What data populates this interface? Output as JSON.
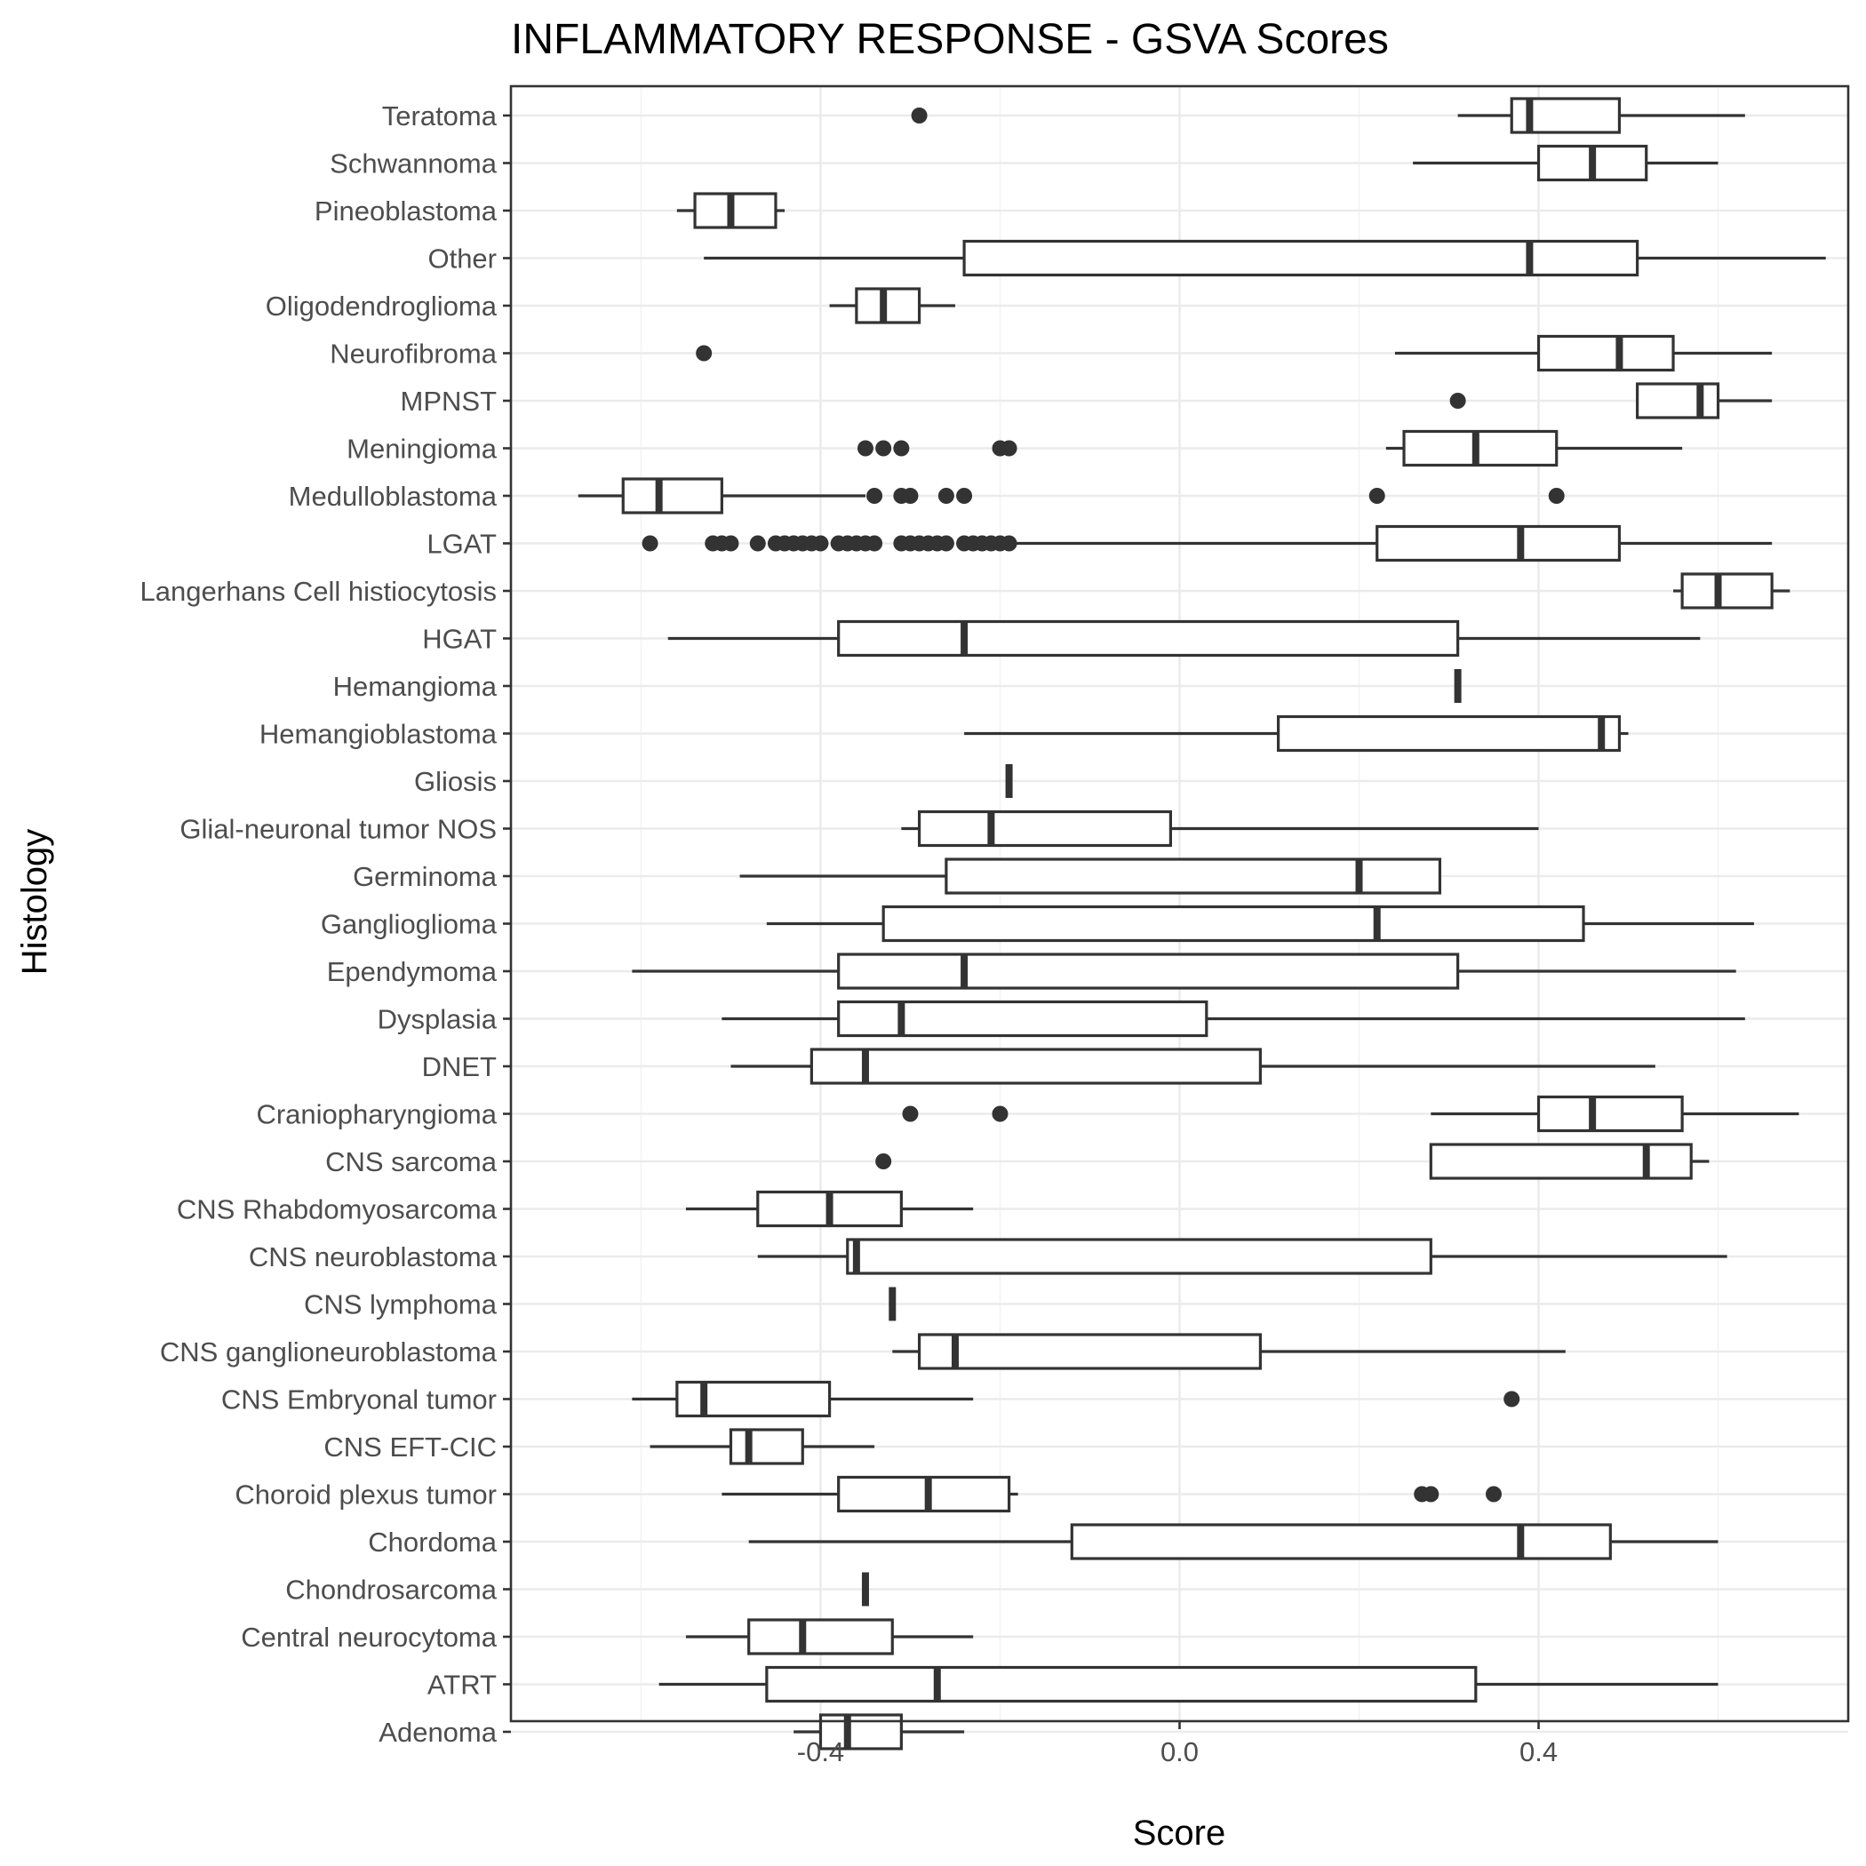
{
  "chart_data": {
    "type": "box",
    "title": "INFLAMMATORY RESPONSE - GSVA Scores",
    "xlabel": "Score",
    "ylabel": "Histology",
    "xlim": [
      -0.745,
      0.745
    ],
    "x_ticks": [
      -0.4,
      0.0,
      0.4
    ],
    "x_tick_labels": [
      "-0.4",
      "0.0",
      "0.4"
    ],
    "grid": true,
    "categories": [
      "Teratoma",
      "Schwannoma",
      "Pineoblastoma",
      "Other",
      "Oligodendroglioma",
      "Neurofibroma",
      "MPNST",
      "Meningioma",
      "Medulloblastoma",
      "LGAT",
      "Langerhans Cell histiocytosis",
      "HGAT",
      "Hemangioma",
      "Hemangioblastoma",
      "Gliosis",
      "Glial-neuronal tumor NOS",
      "Germinoma",
      "Ganglioglioma",
      "Ependymoma",
      "Dysplasia",
      "DNET",
      "Craniopharyngioma",
      "CNS sarcoma",
      "CNS Rhabdomyosarcoma",
      "CNS neuroblastoma",
      "CNS lymphoma",
      "CNS ganglioneuroblastoma",
      "CNS Embryonal tumor",
      "CNS EFT-CIC",
      "Choroid plexus tumor",
      "Chordoma",
      "Chondrosarcoma",
      "Central neurocytoma",
      "ATRT",
      "Adenoma"
    ],
    "boxes": [
      {
        "label": "Teratoma",
        "whisker_low": 0.31,
        "q1": 0.37,
        "median": 0.39,
        "q3": 0.49,
        "whisker_high": 0.63,
        "outliers": [
          -0.29
        ]
      },
      {
        "label": "Schwannoma",
        "whisker_low": 0.26,
        "q1": 0.4,
        "median": 0.46,
        "q3": 0.52,
        "whisker_high": 0.6,
        "outliers": []
      },
      {
        "label": "Pineoblastoma",
        "whisker_low": -0.56,
        "q1": -0.54,
        "median": -0.5,
        "q3": -0.45,
        "whisker_high": -0.44,
        "outliers": []
      },
      {
        "label": "Other",
        "whisker_low": -0.53,
        "q1": -0.24,
        "median": 0.39,
        "q3": 0.51,
        "whisker_high": 0.72,
        "outliers": []
      },
      {
        "label": "Oligodendroglioma",
        "whisker_low": -0.39,
        "q1": -0.36,
        "median": -0.33,
        "q3": -0.29,
        "whisker_high": -0.25,
        "outliers": []
      },
      {
        "label": "Neurofibroma",
        "whisker_low": 0.24,
        "q1": 0.4,
        "median": 0.49,
        "q3": 0.55,
        "whisker_high": 0.66,
        "outliers": [
          -0.53
        ]
      },
      {
        "label": "MPNST",
        "whisker_low": 0.51,
        "q1": 0.51,
        "median": 0.58,
        "q3": 0.6,
        "whisker_high": 0.66,
        "outliers": [
          0.31
        ]
      },
      {
        "label": "Meningioma",
        "whisker_low": 0.23,
        "q1": 0.25,
        "median": 0.33,
        "q3": 0.42,
        "whisker_high": 0.56,
        "outliers": [
          -0.35,
          -0.33,
          -0.31,
          -0.2,
          -0.19
        ]
      },
      {
        "label": "Medulloblastoma",
        "whisker_low": -0.67,
        "q1": -0.62,
        "median": -0.58,
        "q3": -0.51,
        "whisker_high": -0.35,
        "outliers": [
          -0.34,
          -0.31,
          -0.3,
          -0.26,
          -0.24,
          0.22,
          0.42
        ]
      },
      {
        "label": "LGAT",
        "whisker_low": -0.19,
        "q1": 0.22,
        "median": 0.38,
        "q3": 0.49,
        "whisker_high": 0.66,
        "outliers": [
          -0.59,
          -0.52,
          -0.51,
          -0.5,
          -0.47,
          -0.45,
          -0.44,
          -0.43,
          -0.42,
          -0.41,
          -0.4,
          -0.38,
          -0.37,
          -0.36,
          -0.35,
          -0.34,
          -0.31,
          -0.3,
          -0.29,
          -0.28,
          -0.27,
          -0.26,
          -0.24,
          -0.23,
          -0.22,
          -0.21,
          -0.2,
          -0.19
        ]
      },
      {
        "label": "Langerhans Cell histiocytosis",
        "whisker_low": 0.55,
        "q1": 0.56,
        "median": 0.6,
        "q3": 0.66,
        "whisker_high": 0.68,
        "outliers": []
      },
      {
        "label": "HGAT",
        "whisker_low": -0.57,
        "q1": -0.38,
        "median": -0.24,
        "q3": 0.31,
        "whisker_high": 0.58,
        "outliers": []
      },
      {
        "label": "Hemangioma",
        "whisker_low": 0.31,
        "q1": 0.31,
        "median": 0.31,
        "q3": 0.31,
        "whisker_high": 0.31,
        "outliers": []
      },
      {
        "label": "Hemangioblastoma",
        "whisker_low": -0.24,
        "q1": 0.11,
        "median": 0.47,
        "q3": 0.49,
        "whisker_high": 0.5,
        "outliers": []
      },
      {
        "label": "Gliosis",
        "whisker_low": -0.19,
        "q1": -0.19,
        "median": -0.19,
        "q3": -0.19,
        "whisker_high": -0.19,
        "outliers": []
      },
      {
        "label": "Glial-neuronal tumor NOS",
        "whisker_low": -0.31,
        "q1": -0.29,
        "median": -0.21,
        "q3": -0.01,
        "whisker_high": 0.4,
        "outliers": []
      },
      {
        "label": "Germinoma",
        "whisker_low": -0.49,
        "q1": -0.26,
        "median": 0.2,
        "q3": 0.29,
        "whisker_high": 0.29,
        "outliers": []
      },
      {
        "label": "Ganglioglioma",
        "whisker_low": -0.46,
        "q1": -0.33,
        "median": 0.22,
        "q3": 0.45,
        "whisker_high": 0.64,
        "outliers": []
      },
      {
        "label": "Ependymoma",
        "whisker_low": -0.61,
        "q1": -0.38,
        "median": -0.24,
        "q3": 0.31,
        "whisker_high": 0.62,
        "outliers": []
      },
      {
        "label": "Dysplasia",
        "whisker_low": -0.51,
        "q1": -0.38,
        "median": -0.31,
        "q3": 0.03,
        "whisker_high": 0.63,
        "outliers": []
      },
      {
        "label": "DNET",
        "whisker_low": -0.5,
        "q1": -0.41,
        "median": -0.35,
        "q3": 0.09,
        "whisker_high": 0.53,
        "outliers": []
      },
      {
        "label": "Craniopharyngioma",
        "whisker_low": 0.28,
        "q1": 0.4,
        "median": 0.46,
        "q3": 0.56,
        "whisker_high": 0.69,
        "outliers": [
          -0.3,
          -0.2
        ]
      },
      {
        "label": "CNS sarcoma",
        "whisker_low": 0.28,
        "q1": 0.28,
        "median": 0.52,
        "q3": 0.57,
        "whisker_high": 0.59,
        "outliers": [
          -0.33
        ]
      },
      {
        "label": "CNS Rhabdomyosarcoma",
        "whisker_low": -0.55,
        "q1": -0.47,
        "median": -0.39,
        "q3": -0.31,
        "whisker_high": -0.23,
        "outliers": []
      },
      {
        "label": "CNS neuroblastoma",
        "whisker_low": -0.47,
        "q1": -0.37,
        "median": -0.36,
        "q3": 0.28,
        "whisker_high": 0.61,
        "outliers": []
      },
      {
        "label": "CNS lymphoma",
        "whisker_low": -0.32,
        "q1": -0.32,
        "median": -0.32,
        "q3": -0.32,
        "whisker_high": -0.32,
        "outliers": []
      },
      {
        "label": "CNS ganglioneuroblastoma",
        "whisker_low": -0.32,
        "q1": -0.29,
        "median": -0.25,
        "q3": 0.09,
        "whisker_high": 0.43,
        "outliers": []
      },
      {
        "label": "CNS Embryonal tumor",
        "whisker_low": -0.61,
        "q1": -0.56,
        "median": -0.53,
        "q3": -0.39,
        "whisker_high": -0.23,
        "outliers": [
          0.37
        ]
      },
      {
        "label": "CNS EFT-CIC",
        "whisker_low": -0.59,
        "q1": -0.5,
        "median": -0.48,
        "q3": -0.42,
        "whisker_high": -0.34,
        "outliers": []
      },
      {
        "label": "Choroid plexus tumor",
        "whisker_low": -0.51,
        "q1": -0.38,
        "median": -0.28,
        "q3": -0.19,
        "whisker_high": -0.18,
        "outliers": [
          0.27,
          0.28,
          0.35
        ]
      },
      {
        "label": "Chordoma",
        "whisker_low": -0.48,
        "q1": -0.12,
        "median": 0.38,
        "q3": 0.48,
        "whisker_high": 0.6,
        "outliers": []
      },
      {
        "label": "Chondrosarcoma",
        "whisker_low": -0.35,
        "q1": -0.35,
        "median": -0.35,
        "q3": -0.35,
        "whisker_high": -0.35,
        "outliers": []
      },
      {
        "label": "Central neurocytoma",
        "whisker_low": -0.55,
        "q1": -0.48,
        "median": -0.42,
        "q3": -0.32,
        "whisker_high": -0.23,
        "outliers": []
      },
      {
        "label": "ATRT",
        "whisker_low": -0.58,
        "q1": -0.46,
        "median": -0.27,
        "q3": 0.33,
        "whisker_high": 0.6,
        "outliers": []
      },
      {
        "label": "Adenoma",
        "whisker_low": -0.43,
        "q1": -0.4,
        "median": -0.37,
        "q3": -0.31,
        "whisker_high": -0.24,
        "outliers": []
      }
    ]
  }
}
